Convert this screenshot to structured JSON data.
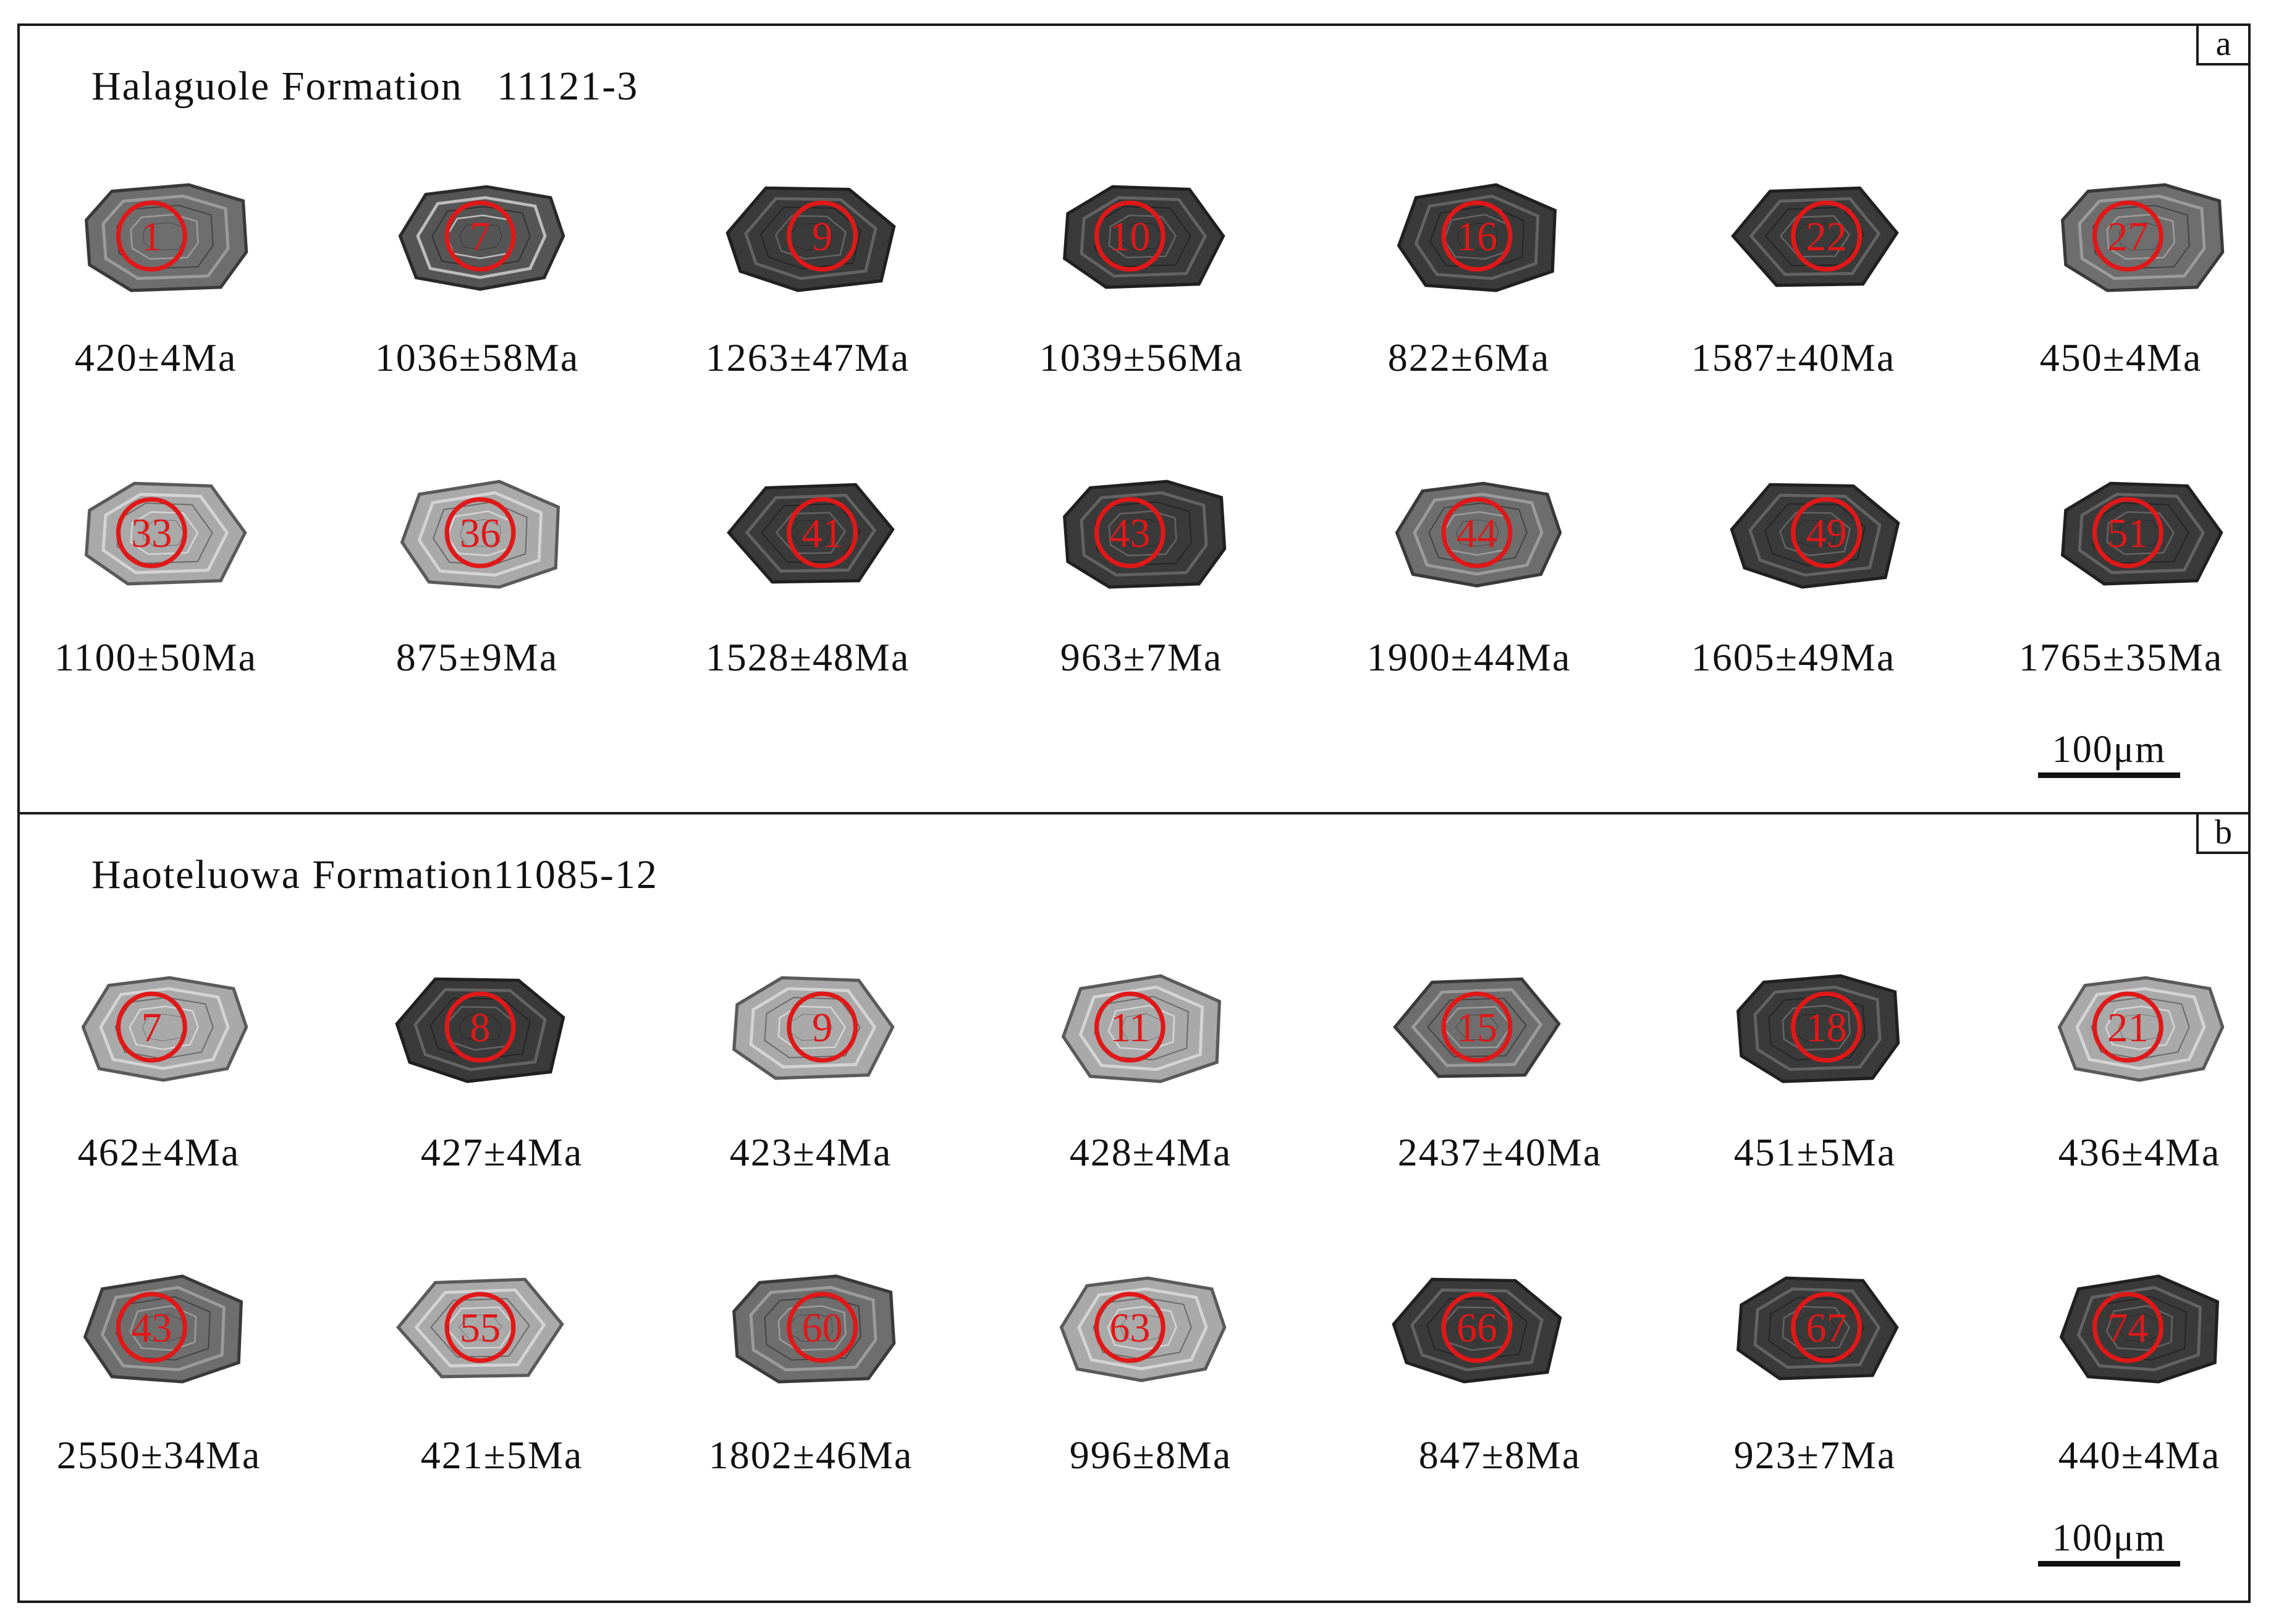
{
  "colors": {
    "spot": "#e01818",
    "frame": "#1a1a1a",
    "text": "#111111"
  },
  "panels": [
    {
      "letter": "a",
      "title": "Halaguole Formation   11121-3",
      "scale_bar": "100μm",
      "rows": [
        [
          {
            "spot": "1",
            "age": "420±4Ma",
            "tone": "mid"
          },
          {
            "spot": "7",
            "age": "1036±58Ma",
            "tone": "mixed"
          },
          {
            "spot": "9",
            "age": "1263±47Ma",
            "tone": "dark"
          },
          {
            "spot": "10",
            "age": "1039±56Ma",
            "tone": "dark"
          },
          {
            "spot": "16",
            "age": "822±6Ma",
            "tone": "dark"
          },
          {
            "spot": "22",
            "age": "1587±40Ma",
            "tone": "dark"
          },
          {
            "spot": "27",
            "age": "450±4Ma",
            "tone": "mid"
          }
        ],
        [
          {
            "spot": "33",
            "age": "1100±50Ma",
            "tone": "light"
          },
          {
            "spot": "36",
            "age": "875±9Ma",
            "tone": "light"
          },
          {
            "spot": "41",
            "age": "1528±48Ma",
            "tone": "dark"
          },
          {
            "spot": "43",
            "age": "963±7Ma",
            "tone": "dark"
          },
          {
            "spot": "44",
            "age": "1900±44Ma",
            "tone": "mid"
          },
          {
            "spot": "49",
            "age": "1605±49Ma",
            "tone": "dark"
          },
          {
            "spot": "51",
            "age": "1765±35Ma",
            "tone": "dark"
          }
        ]
      ]
    },
    {
      "letter": "b",
      "title": "Haoteluowa Formation11085-12",
      "scale_bar": "100μm",
      "rows": [
        [
          {
            "spot": "7",
            "age": "462±4Ma",
            "tone": "light"
          },
          {
            "spot": "8",
            "age": "427±4Ma",
            "tone": "dark"
          },
          {
            "spot": "9",
            "age": "423±4Ma",
            "tone": "light"
          },
          {
            "spot": "11",
            "age": "428±4Ma",
            "tone": "light"
          },
          {
            "spot": "15",
            "age": "2437±40Ma",
            "tone": "mid"
          },
          {
            "spot": "18",
            "age": "451±5Ma",
            "tone": "dark"
          },
          {
            "spot": "21",
            "age": "436±4Ma",
            "tone": "light"
          }
        ],
        [
          {
            "spot": "43",
            "age": "2550±34Ma",
            "tone": "mid"
          },
          {
            "spot": "55",
            "age": "421±5Ma",
            "tone": "light"
          },
          {
            "spot": "60",
            "age": "1802±46Ma",
            "tone": "mid"
          },
          {
            "spot": "63",
            "age": "996±8Ma",
            "tone": "light"
          },
          {
            "spot": "66",
            "age": "847±8Ma",
            "tone": "dark"
          },
          {
            "spot": "67",
            "age": "923±7Ma",
            "tone": "dark"
          },
          {
            "spot": "74",
            "age": "440±4Ma",
            "tone": "dark"
          }
        ]
      ]
    }
  ]
}
